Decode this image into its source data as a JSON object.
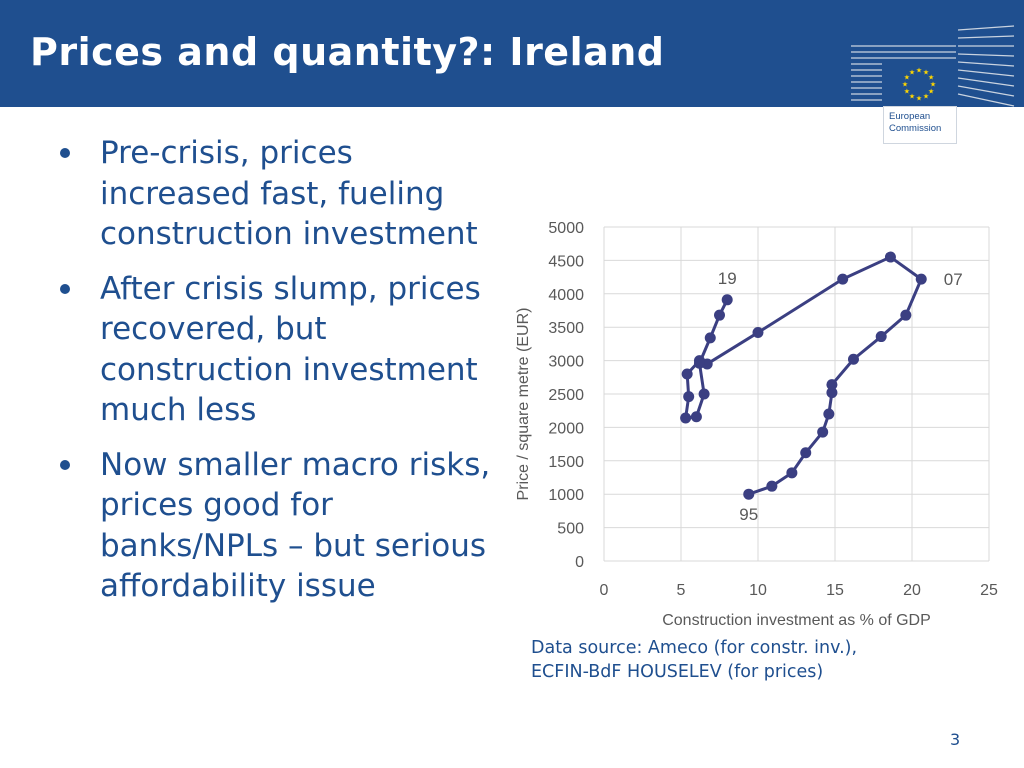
{
  "slide": {
    "title": "Prices and quantity?: Ireland",
    "bullets": [
      "Pre-crisis, prices increased fast, fueling construction investment",
      "After crisis slump, prices recovered, but construction investment much less",
      "Now smaller macro risks, prices good for banks/NPLs – but serious affordability issue"
    ],
    "source": "Data source: Ameco (for constr. inv.), ECFIN-BdF HOUSELEV (for prices)",
    "page_number": "3"
  },
  "logo": {
    "line1": "European",
    "line2": "Commission"
  },
  "colors": {
    "header": "#1f4f8f",
    "text": "#1f4f8f",
    "series": "#3b3f82",
    "grid": "#d9d9d9",
    "axis_text": "#595959",
    "eu_star": "#ffd700"
  },
  "chart_data": {
    "type": "scatter",
    "xlabel": "Construction investment as % of GDP",
    "ylabel": "Price / square metre  (EUR)",
    "xlim": [
      0,
      25
    ],
    "ylim": [
      0,
      5000
    ],
    "xticks": [
      0,
      5,
      10,
      15,
      20,
      25
    ],
    "yticks": [
      0,
      500,
      1000,
      1500,
      2000,
      2500,
      3000,
      3500,
      4000,
      4500,
      5000
    ],
    "grid": true,
    "connected": true,
    "series": [
      {
        "points": [
          [
            9.4,
            1000
          ],
          [
            10.9,
            1120
          ],
          [
            12.2,
            1320
          ],
          [
            13.1,
            1620
          ],
          [
            14.2,
            1930
          ],
          [
            14.6,
            2200
          ],
          [
            14.8,
            2520
          ],
          [
            14.8,
            2640
          ],
          [
            16.2,
            3020
          ],
          [
            18.0,
            3360
          ],
          [
            19.6,
            3680
          ],
          [
            20.6,
            4220
          ],
          [
            18.6,
            4550
          ],
          [
            15.5,
            4220
          ],
          [
            10.0,
            3420
          ],
          [
            6.7,
            2950
          ],
          [
            6.2,
            3000
          ],
          [
            5.4,
            2800
          ],
          [
            5.5,
            2460
          ],
          [
            5.3,
            2140
          ],
          [
            6.0,
            2160
          ],
          [
            6.5,
            2500
          ],
          [
            6.2,
            2960
          ],
          [
            6.9,
            3340
          ],
          [
            7.5,
            3680
          ],
          [
            8.0,
            3910
          ]
        ]
      }
    ],
    "annotations": [
      {
        "text": "95",
        "x": 9.4,
        "y": 1000
      },
      {
        "text": "07",
        "x": 20.6,
        "y": 4220
      },
      {
        "text": "19",
        "x": 8.0,
        "y": 3910
      }
    ]
  }
}
